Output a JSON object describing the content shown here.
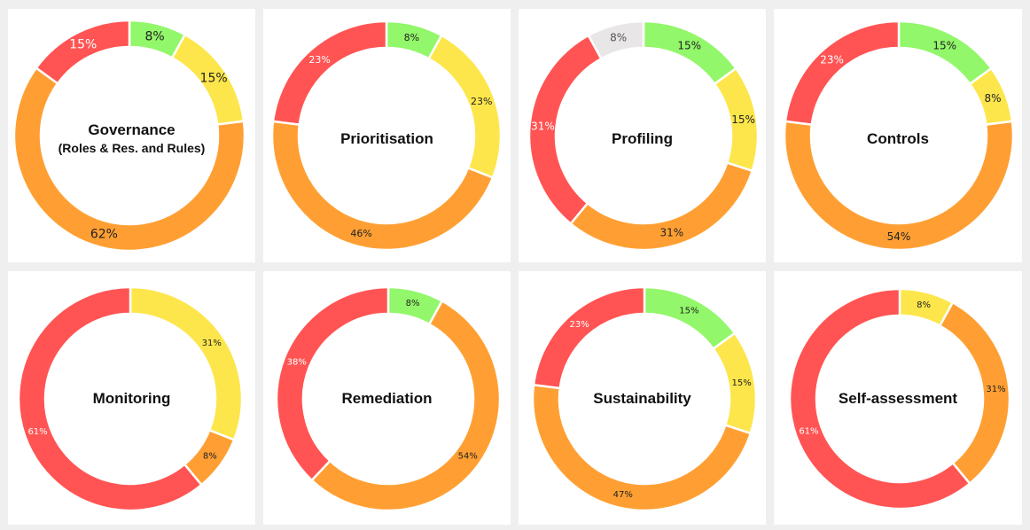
{
  "colors": {
    "green": "#92f76a",
    "yellow": "#fde64b",
    "orange": "#ff9f33",
    "red": "#ff5453",
    "grey": "#e8e6e6",
    "background": "#efefef",
    "panel": "#ffffff"
  },
  "chart_data": [
    {
      "type": "pie",
      "title": "Governance",
      "subtitle": "(Roles & Res. and Rules)",
      "slices": [
        {
          "label": "8%",
          "value": 8,
          "color": "green"
        },
        {
          "label": "15%",
          "value": 15,
          "color": "yellow"
        },
        {
          "label": "62%",
          "value": 62,
          "color": "orange"
        },
        {
          "label": "15%",
          "value": 15,
          "color": "red"
        }
      ]
    },
    {
      "type": "pie",
      "title": "Prioritisation",
      "slices": [
        {
          "label": "8%",
          "value": 8,
          "color": "green"
        },
        {
          "label": "23%",
          "value": 23,
          "color": "yellow"
        },
        {
          "label": "46%",
          "value": 46,
          "color": "orange"
        },
        {
          "label": "23%",
          "value": 23,
          "color": "red"
        }
      ]
    },
    {
      "type": "pie",
      "title": "Profiling",
      "slices": [
        {
          "label": "15%",
          "value": 15,
          "color": "green"
        },
        {
          "label": "15%",
          "value": 15,
          "color": "yellow"
        },
        {
          "label": "31%",
          "value": 31,
          "color": "orange"
        },
        {
          "label": "31%",
          "value": 31,
          "color": "red"
        },
        {
          "label": "8%",
          "value": 8,
          "color": "grey"
        }
      ]
    },
    {
      "type": "pie",
      "title": "Controls",
      "slices": [
        {
          "label": "15%",
          "value": 15,
          "color": "green"
        },
        {
          "label": "8%",
          "value": 8,
          "color": "yellow"
        },
        {
          "label": "54%",
          "value": 54,
          "color": "orange"
        },
        {
          "label": "23%",
          "value": 23,
          "color": "red"
        }
      ]
    },
    {
      "type": "pie",
      "title": "Monitoring",
      "slices": [
        {
          "label": "31%",
          "value": 31,
          "color": "yellow"
        },
        {
          "label": "8%",
          "value": 8,
          "color": "orange"
        },
        {
          "label": "61%",
          "value": 61,
          "color": "red"
        }
      ]
    },
    {
      "type": "pie",
      "title": "Remediation",
      "slices": [
        {
          "label": "8%",
          "value": 8,
          "color": "green"
        },
        {
          "label": "54%",
          "value": 54,
          "color": "orange"
        },
        {
          "label": "38%",
          "value": 38,
          "color": "red"
        }
      ]
    },
    {
      "type": "pie",
      "title": "Sustainability",
      "slices": [
        {
          "label": "15%",
          "value": 15,
          "color": "green"
        },
        {
          "label": "15%",
          "value": 15,
          "color": "yellow"
        },
        {
          "label": "47%",
          "value": 47,
          "color": "orange"
        },
        {
          "label": "23%",
          "value": 23,
          "color": "red"
        }
      ]
    },
    {
      "type": "pie",
      "title": "Self-assessment",
      "slices": [
        {
          "label": "8%",
          "value": 8,
          "color": "yellow"
        },
        {
          "label": "31%",
          "value": 31,
          "color": "orange"
        },
        {
          "label": "61%",
          "value": 61,
          "color": "red"
        }
      ]
    }
  ]
}
